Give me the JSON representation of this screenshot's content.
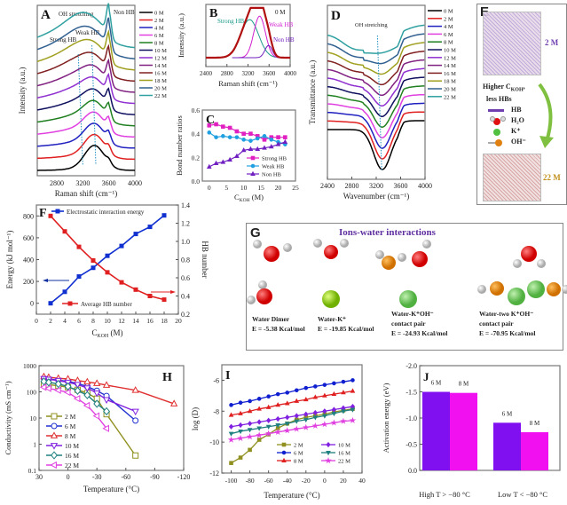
{
  "conc_colors": {
    "0 M": "#000000",
    "2 M": "#e02020",
    "4 M": "#2020c0",
    "6 M": "#e040e0",
    "8 M": "#208020",
    "10 M": "#101060",
    "12 M": "#9030d0",
    "14 M": "#802080",
    "16 M": "#802020",
    "18 M": "#a0a020",
    "20 M": "#306090",
    "22 M": "#30a0a0"
  },
  "chart_data": [
    {
      "id": "A",
      "panel_label": "A",
      "type": "line",
      "title": "OH stretching",
      "xlabel": "Raman shift (cm⁻¹)",
      "ylabel": "Intensity (a.u.)",
      "xlim": [
        2500,
        4000
      ],
      "xticks": [
        "2800",
        "3200",
        "3600",
        "4000"
      ],
      "annotations": [
        "Strong HB",
        "Weak HB",
        "Non HB"
      ],
      "legend": [
        "0 M",
        "2 M",
        "4 M",
        "6 M",
        "8 M",
        "10 M",
        "12 M",
        "14 M",
        "16 M",
        "18 M",
        "20 M",
        "22 M"
      ],
      "legend_position": "right-outside",
      "series_note": "stacked Raman spectra, peaks near 3200 (strong HB), 3400 (weak HB), 3600 (non HB)"
    },
    {
      "id": "B",
      "panel_label": "B",
      "type": "line",
      "subtitle": "0 M",
      "xlabel": "Raman shift (cm⁻¹)",
      "ylabel": "Intensity (a.u.)",
      "xlim": [
        2400,
        4000
      ],
      "xticks": [
        "2400",
        "2800",
        "3200",
        "3600",
        "4000"
      ],
      "components": [
        {
          "name": "Strong HB",
          "center": 3230,
          "width": 170,
          "height": 0.78,
          "color": "#1a9a8a"
        },
        {
          "name": "Weak HB",
          "center": 3420,
          "width": 110,
          "height": 0.85,
          "color": "#d020d0"
        },
        {
          "name": "Non HB",
          "center": 3590,
          "width": 70,
          "height": 0.25,
          "color": "#7020c0"
        }
      ]
    },
    {
      "id": "C",
      "panel_label": "C",
      "type": "line",
      "xlabel": "C_KOH (M)",
      "ylabel": "Bond number ratios",
      "xlim": [
        -2,
        25
      ],
      "ylim": [
        0,
        0.6
      ],
      "xticks": [
        "0",
        "5",
        "10",
        "15",
        "20",
        "25"
      ],
      "yticks": [
        "0.0",
        "0.2",
        "0.4",
        "0.6"
      ],
      "x": [
        0,
        2,
        4,
        6,
        8,
        10,
        12,
        14,
        16,
        18,
        20,
        22
      ],
      "series": [
        {
          "name": "Strong HB",
          "color": "#e020c0",
          "marker": "square",
          "values": [
            0.47,
            0.48,
            0.46,
            0.45,
            0.42,
            0.4,
            0.4,
            0.38,
            0.35,
            0.37,
            0.37,
            0.37
          ]
        },
        {
          "name": "Weak HB",
          "color": "#20a0e0",
          "marker": "circle",
          "values": [
            0.41,
            0.37,
            0.38,
            0.37,
            0.37,
            0.35,
            0.34,
            0.36,
            0.38,
            0.35,
            0.33,
            0.31
          ]
        },
        {
          "name": "Non HB",
          "color": "#7020c0",
          "marker": "triangle",
          "values": [
            0.12,
            0.15,
            0.16,
            0.18,
            0.21,
            0.26,
            0.27,
            0.27,
            0.28,
            0.29,
            0.31,
            0.33
          ]
        }
      ],
      "legend_position": "bottom-right"
    },
    {
      "id": "D",
      "panel_label": "D",
      "type": "line",
      "title": "OH stretching",
      "xlabel": "Wavenumber (cm⁻¹)",
      "ylabel": "Transmittance (a.u.)",
      "xlim": [
        2400,
        4000
      ],
      "xticks": [
        "2400",
        "2800",
        "3200",
        "3600",
        "4000"
      ],
      "legend": [
        "0 M",
        "2 M",
        "4 M",
        "6 M",
        "8 M",
        "10 M",
        "12 M",
        "14 M",
        "16 M",
        "18 M",
        "20 M",
        "22 M"
      ],
      "legend_position": "right-outside",
      "series_note": "stacked FTIR spectra with minimum near 3250-3350"
    },
    {
      "id": "F",
      "panel_label": "F",
      "type": "line",
      "xlabel": "C_KOH (M)",
      "ylabel": "Energy (kJ mol⁻¹)",
      "ylabel_right": "HB number",
      "xlim": [
        0,
        20
      ],
      "ylim": [
        -100,
        900
      ],
      "ylim_right": [
        0.2,
        1.4
      ],
      "xticks": [
        "0",
        "2",
        "4",
        "6",
        "8",
        "10",
        "12",
        "14",
        "16",
        "18",
        "20"
      ],
      "yticks": [
        "0",
        "200",
        "400",
        "600",
        "800"
      ],
      "yticks_right": [
        "0.2",
        "0.4",
        "0.6",
        "0.8",
        "1.0",
        "1.2",
        "1.4"
      ],
      "x": [
        2,
        4,
        6,
        8,
        10,
        12,
        14,
        16,
        18
      ],
      "series": [
        {
          "name": "Electrostatic interaction energy",
          "color": "#1030d0",
          "axis": "left",
          "values": [
            0,
            105,
            245,
            325,
            435,
            525,
            635,
            700,
            805
          ]
        },
        {
          "name": "Average HB number",
          "color": "#e02020",
          "axis": "right",
          "values": [
            1.28,
            1.11,
            0.94,
            0.79,
            0.66,
            0.55,
            0.47,
            0.4,
            0.36
          ]
        }
      ]
    },
    {
      "id": "H",
      "panel_label": "H",
      "type": "line",
      "xlabel": "Temperature (°C)",
      "ylabel": "Conductivity (mS cm⁻¹)",
      "xlim": [
        30,
        -120
      ],
      "ylim": [
        0.1,
        1000
      ],
      "yscale": "log",
      "xticks": [
        "30",
        "0",
        "-30",
        "-60",
        "-90",
        "-120"
      ],
      "yticks": [
        "0.1",
        "1",
        "10",
        "100",
        "1000"
      ],
      "series": [
        {
          "name": "2 M",
          "color": "#909020",
          "marker": "square",
          "x": [
            25,
            20,
            10,
            0,
            -10,
            -20,
            -30,
            -40,
            -70
          ],
          "values": [
            200,
            190,
            170,
            150,
            120,
            90,
            55,
            14,
            0.37
          ]
        },
        {
          "name": "6 M",
          "color": "#2030d0",
          "marker": "circle",
          "x": [
            25,
            20,
            10,
            0,
            -10,
            -20,
            -30,
            -40,
            -70
          ],
          "values": [
            330,
            310,
            280,
            250,
            210,
            160,
            110,
            70,
            8
          ]
        },
        {
          "name": "8 M",
          "color": "#e03030",
          "marker": "triangle-up",
          "x": [
            25,
            20,
            10,
            0,
            -10,
            -20,
            -30,
            -40,
            -70,
            -110
          ],
          "values": [
            380,
            360,
            330,
            310,
            270,
            240,
            210,
            180,
            115,
            35
          ]
        },
        {
          "name": "10 M",
          "color": "#8020e0",
          "marker": "triangle-down",
          "x": [
            25,
            20,
            10,
            0,
            -10,
            -20,
            -30,
            -40,
            -70
          ],
          "values": [
            320,
            300,
            270,
            230,
            190,
            140,
            90,
            50,
            18
          ]
        },
        {
          "name": "16 M",
          "color": "#208080",
          "marker": "diamond",
          "x": [
            25,
            20,
            10,
            0,
            -10,
            -20,
            -30,
            -40
          ],
          "values": [
            250,
            230,
            200,
            160,
            110,
            75,
            35,
            18
          ]
        },
        {
          "name": "22 M",
          "color": "#e040e0",
          "marker": "triangle-left",
          "x": [
            25,
            20,
            10,
            0,
            -10,
            -20,
            -30,
            -40
          ],
          "values": [
            150,
            135,
            115,
            95,
            55,
            30,
            12,
            4
          ]
        }
      ],
      "legend_position": "bottom-left"
    },
    {
      "id": "I",
      "panel_label": "I",
      "type": "line",
      "xlabel": "Temperature (°C)",
      "ylabel": "log (D)",
      "xlim": [
        -110,
        40
      ],
      "ylim": [
        -12,
        -5
      ],
      "xticks": [
        "-100",
        "-80",
        "-60",
        "-40",
        "-20",
        "0",
        "20",
        "40"
      ],
      "yticks": [
        "-12",
        "-10",
        "-8",
        "-6"
      ],
      "x": [
        -100,
        -90,
        -80,
        -70,
        -60,
        -50,
        -40,
        -30,
        -20,
        -10,
        0,
        10,
        20,
        30
      ],
      "series": [
        {
          "name": "2 M",
          "color": "#909020",
          "marker": "square",
          "values": [
            -11.35,
            -11.0,
            -10.5,
            -9.85,
            -9.5,
            -9.1,
            -8.8,
            -8.55,
            -8.4,
            -8.3,
            -8.2,
            -8.05,
            -7.95,
            -7.85
          ]
        },
        {
          "name": "6 M",
          "color": "#1020d0",
          "marker": "circle",
          "values": [
            -7.6,
            -7.45,
            -7.35,
            -7.2,
            -7.05,
            -6.9,
            -6.8,
            -6.65,
            -6.5,
            -6.4,
            -6.3,
            -6.2,
            -6.1,
            -6.0
          ]
        },
        {
          "name": "8 M",
          "color": "#e02020",
          "marker": "triangle",
          "values": [
            -8.25,
            -8.15,
            -8.0,
            -7.85,
            -7.75,
            -7.6,
            -7.5,
            -7.35,
            -7.25,
            -7.1,
            -7.0,
            -6.9,
            -6.8,
            -6.7
          ]
        },
        {
          "name": "10 M",
          "color": "#8020e0",
          "marker": "diamond",
          "values": [
            -9.0,
            -8.9,
            -8.8,
            -8.7,
            -8.6,
            -8.5,
            -8.4,
            -8.3,
            -8.2,
            -8.1,
            -8.0,
            -7.9,
            -7.8,
            -7.7
          ]
        },
        {
          "name": "16 M",
          "color": "#208080",
          "marker": "triangle-down",
          "values": [
            -9.45,
            -9.3,
            -9.2,
            -9.1,
            -9.0,
            -8.9,
            -8.8,
            -8.65,
            -8.55,
            -8.4,
            -8.3,
            -8.15,
            -8.0,
            -7.9
          ]
        },
        {
          "name": "22 M",
          "color": "#e040e0",
          "marker": "star",
          "values": [
            -9.85,
            -9.75,
            -9.65,
            -9.55,
            -9.45,
            -9.35,
            -9.25,
            -9.15,
            -9.05,
            -8.95,
            -8.85,
            -8.75,
            -8.65,
            -8.6
          ]
        }
      ],
      "legend_position": "bottom-right"
    },
    {
      "id": "J",
      "panel_label": "J",
      "type": "bar",
      "ylabel": "Activation energy (eV)",
      "ylim": [
        0,
        -2.0
      ],
      "yticks": [
        "0.0",
        "-0.5",
        "-1.0",
        "-1.5",
        "-2.0"
      ],
      "categories": [
        "High T > −80 °C",
        "Low T < −80 °C"
      ],
      "series": [
        {
          "name": "6 M",
          "color": "#8010f0",
          "values": [
            -1.5,
            -0.91
          ]
        },
        {
          "name": "8 M",
          "color": "#f010f0",
          "values": [
            -1.48,
            -0.73
          ]
        }
      ]
    }
  ],
  "panel_E": {
    "label": "E",
    "top_conc": "2 M",
    "bottom_conc": "22 M",
    "caption_line1": "Higher C",
    "caption_sub": "KOH",
    "caption_line2": "less HBs",
    "legend": [
      {
        "key": "HB",
        "symbol": "bar"
      },
      {
        "key": "H₂O",
        "symbol": "water"
      },
      {
        "key": "K⁺",
        "symbol": "k"
      },
      {
        "key": "OH⁻",
        "symbol": "oh"
      }
    ]
  },
  "panel_G": {
    "label": "G",
    "title": "Ions-water interactions",
    "items": [
      {
        "name": "Water Dimer",
        "energy": "E = -5.38 Kcal/mol"
      },
      {
        "name": "Water-K⁺",
        "energy": "E = -19.85 Kcal/mol"
      },
      {
        "name": "Water-K⁺OH⁻",
        "name2": "contact pair",
        "energy": "E = -24.93 Kcal/mol"
      },
      {
        "name": "Water-two K⁺OH⁻",
        "name2": "contact pair",
        "energy": "E = -70.95 Kcal/mol"
      }
    ]
  },
  "axis_labels": {
    "ckoh_C": "C",
    "ckoh_sub": "KOH",
    "ckoh_unit": " (M)"
  }
}
